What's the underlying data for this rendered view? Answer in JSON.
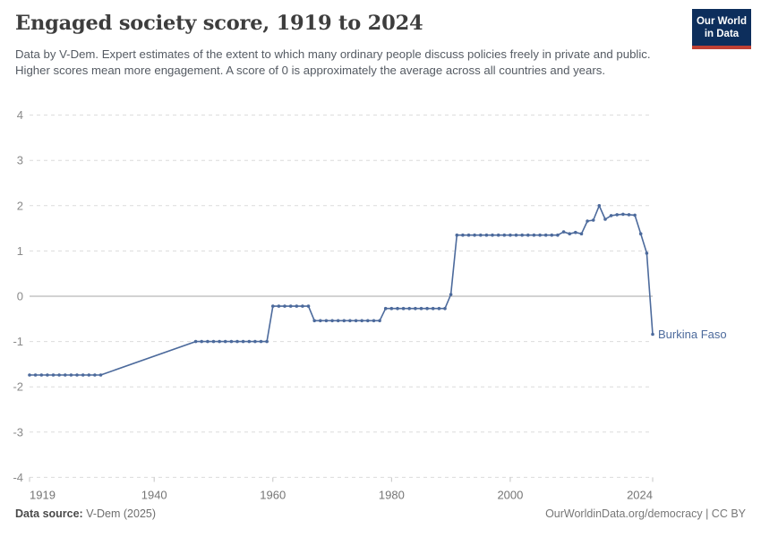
{
  "header": {
    "title": "Engaged society score, 1919 to 2024",
    "subtitle": "Data by V-Dem. Expert estimates of the extent to which many ordinary people discuss policies freely in private and public. Higher scores mean more engagement. A score of 0 is approximately the average across all countries and years.",
    "logo": {
      "line1": "Our World",
      "line2": "in Data"
    }
  },
  "footer": {
    "source_label": "Data source:",
    "source_value": " V-Dem (2025)",
    "credit": "OurWorldinData.org/democracy | CC BY"
  },
  "colors": {
    "series": "#4c6a9c",
    "grid": "#dcdcdc",
    "zero_line": "#a5a5a5",
    "logo_bg": "#0d2e5c",
    "logo_red": "#bf4034"
  },
  "chart_data": {
    "type": "line",
    "title": "Engaged society score, 1919 to 2024",
    "xlabel": "",
    "ylabel": "",
    "grid": "horizontal-dashed",
    "zero_line": true,
    "legend_position": "end-of-line-label",
    "x": {
      "min": 1919,
      "max": 2024,
      "ticks": [
        1919,
        1940,
        1960,
        1980,
        2000,
        2024
      ]
    },
    "y": {
      "min": -4,
      "max": 4,
      "ticks": [
        4,
        3,
        2,
        1,
        0,
        -1,
        -2,
        -3,
        -4
      ]
    },
    "series": [
      {
        "name": "Burkina Faso",
        "color": "#4c6a9c",
        "points": [
          [
            1919,
            -1.74
          ],
          [
            1920,
            -1.74
          ],
          [
            1921,
            -1.74
          ],
          [
            1922,
            -1.74
          ],
          [
            1923,
            -1.74
          ],
          [
            1924,
            -1.74
          ],
          [
            1925,
            -1.74
          ],
          [
            1926,
            -1.74
          ],
          [
            1927,
            -1.74
          ],
          [
            1928,
            -1.74
          ],
          [
            1929,
            -1.74
          ],
          [
            1930,
            -1.74
          ],
          [
            1931,
            -1.74
          ],
          [
            1947,
            -1.0
          ],
          [
            1948,
            -1.0
          ],
          [
            1949,
            -1.0
          ],
          [
            1950,
            -1.0
          ],
          [
            1951,
            -1.0
          ],
          [
            1952,
            -1.0
          ],
          [
            1953,
            -1.0
          ],
          [
            1954,
            -1.0
          ],
          [
            1955,
            -1.0
          ],
          [
            1956,
            -1.0
          ],
          [
            1957,
            -1.0
          ],
          [
            1958,
            -1.0
          ],
          [
            1959,
            -1.0
          ],
          [
            1960,
            -0.22
          ],
          [
            1961,
            -0.22
          ],
          [
            1962,
            -0.22
          ],
          [
            1963,
            -0.22
          ],
          [
            1964,
            -0.22
          ],
          [
            1965,
            -0.22
          ],
          [
            1966,
            -0.22
          ],
          [
            1967,
            -0.54
          ],
          [
            1968,
            -0.54
          ],
          [
            1969,
            -0.54
          ],
          [
            1970,
            -0.54
          ],
          [
            1971,
            -0.54
          ],
          [
            1972,
            -0.54
          ],
          [
            1973,
            -0.54
          ],
          [
            1974,
            -0.54
          ],
          [
            1975,
            -0.54
          ],
          [
            1976,
            -0.54
          ],
          [
            1977,
            -0.54
          ],
          [
            1978,
            -0.54
          ],
          [
            1979,
            -0.27
          ],
          [
            1980,
            -0.27
          ],
          [
            1981,
            -0.27
          ],
          [
            1982,
            -0.27
          ],
          [
            1983,
            -0.27
          ],
          [
            1984,
            -0.27
          ],
          [
            1985,
            -0.27
          ],
          [
            1986,
            -0.27
          ],
          [
            1987,
            -0.27
          ],
          [
            1988,
            -0.27
          ],
          [
            1989,
            -0.27
          ],
          [
            1990,
            0.04
          ],
          [
            1991,
            1.35
          ],
          [
            1992,
            1.35
          ],
          [
            1993,
            1.35
          ],
          [
            1994,
            1.35
          ],
          [
            1995,
            1.35
          ],
          [
            1996,
            1.35
          ],
          [
            1997,
            1.35
          ],
          [
            1998,
            1.35
          ],
          [
            1999,
            1.35
          ],
          [
            2000,
            1.35
          ],
          [
            2001,
            1.35
          ],
          [
            2002,
            1.35
          ],
          [
            2003,
            1.35
          ],
          [
            2004,
            1.35
          ],
          [
            2005,
            1.35
          ],
          [
            2006,
            1.35
          ],
          [
            2007,
            1.35
          ],
          [
            2008,
            1.35
          ],
          [
            2009,
            1.42
          ],
          [
            2010,
            1.38
          ],
          [
            2011,
            1.41
          ],
          [
            2012,
            1.38
          ],
          [
            2013,
            1.66
          ],
          [
            2014,
            1.68
          ],
          [
            2015,
            2.0
          ],
          [
            2016,
            1.7
          ],
          [
            2017,
            1.78
          ],
          [
            2018,
            1.8
          ],
          [
            2019,
            1.81
          ],
          [
            2020,
            1.8
          ],
          [
            2021,
            1.79
          ],
          [
            2022,
            1.38
          ],
          [
            2023,
            0.95
          ],
          [
            2024,
            -0.84
          ]
        ]
      }
    ]
  }
}
